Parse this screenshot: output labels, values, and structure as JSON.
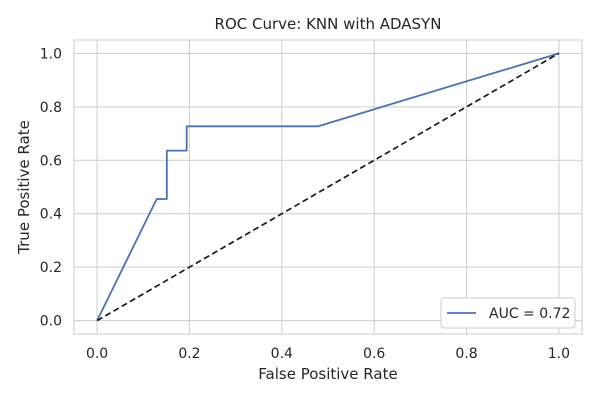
{
  "chart_data": {
    "type": "line",
    "title": "ROC Curve: KNN with ADASYN",
    "xlabel": "False Positive Rate",
    "ylabel": "True Positive Rate",
    "xlim": [
      -0.05,
      1.05
    ],
    "ylim": [
      -0.05,
      1.05
    ],
    "xticks": [
      "0.0",
      "0.2",
      "0.4",
      "0.6",
      "0.8",
      "1.0"
    ],
    "yticks": [
      "0.0",
      "0.2",
      "0.4",
      "0.6",
      "0.8",
      "1.0"
    ],
    "grid": true,
    "legend_position": "lower-right",
    "series": [
      {
        "name": "AUC = 0.72",
        "color": "#4c72b0",
        "style": "solid",
        "x": [
          0.0,
          0.129,
          0.151,
          0.151,
          0.194,
          0.194,
          0.478,
          1.0
        ],
        "y": [
          0.0,
          0.455,
          0.455,
          0.636,
          0.636,
          0.727,
          0.727,
          1.0
        ]
      },
      {
        "color": "#1a1a1a",
        "style": "dashed",
        "x": [
          0.0,
          1.0
        ],
        "y": [
          0.0,
          1.0
        ]
      }
    ]
  }
}
